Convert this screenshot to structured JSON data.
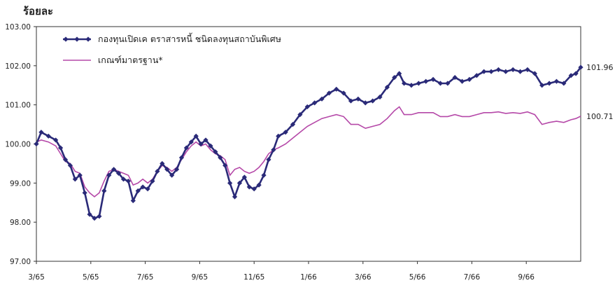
{
  "chart_data": {
    "type": "line",
    "unit_label": "ร้อยละ",
    "x_tick_labels": [
      "3/65",
      "5/65",
      "7/65",
      "9/65",
      "11/65",
      "1/66",
      "3/66",
      "5/66",
      "7/66",
      "9/66"
    ],
    "ylim": [
      97.0,
      103.0
    ],
    "y_ticks": [
      "97.00",
      "98.00",
      "99.00",
      "100.00",
      "101.00",
      "102.00",
      "103.00"
    ],
    "grid": false,
    "legend_position": "top-left",
    "series": [
      {
        "name": "กองทุนเปิดเค ตราสารหนี้ ชนิดลงทุนสถาบันพิเศษ",
        "color": "#2a2a78",
        "marker": "diamond",
        "end_label": "101.96",
        "points": [
          [
            0,
            100.0
          ],
          [
            2,
            100.3
          ],
          [
            5,
            100.2
          ],
          [
            8,
            100.1
          ],
          [
            10,
            99.9
          ],
          [
            12,
            99.6
          ],
          [
            14,
            99.45
          ],
          [
            16,
            99.1
          ],
          [
            18,
            99.2
          ],
          [
            20,
            98.75
          ],
          [
            22,
            98.2
          ],
          [
            24,
            98.1
          ],
          [
            26,
            98.15
          ],
          [
            28,
            98.8
          ],
          [
            30,
            99.2
          ],
          [
            32,
            99.35
          ],
          [
            34,
            99.25
          ],
          [
            36,
            99.1
          ],
          [
            38,
            99.05
          ],
          [
            40,
            98.55
          ],
          [
            42,
            98.8
          ],
          [
            44,
            98.9
          ],
          [
            46,
            98.85
          ],
          [
            48,
            99.05
          ],
          [
            50,
            99.3
          ],
          [
            52,
            99.5
          ],
          [
            54,
            99.35
          ],
          [
            56,
            99.2
          ],
          [
            58,
            99.35
          ],
          [
            60,
            99.65
          ],
          [
            62,
            99.9
          ],
          [
            64,
            100.05
          ],
          [
            66,
            100.2
          ],
          [
            68,
            100.0
          ],
          [
            70,
            100.1
          ],
          [
            72,
            99.95
          ],
          [
            74,
            99.8
          ],
          [
            76,
            99.65
          ],
          [
            78,
            99.45
          ],
          [
            80,
            99.0
          ],
          [
            82,
            98.65
          ],
          [
            84,
            99.0
          ],
          [
            86,
            99.15
          ],
          [
            88,
            98.9
          ],
          [
            90,
            98.85
          ],
          [
            92,
            98.95
          ],
          [
            94,
            99.2
          ],
          [
            96,
            99.6
          ],
          [
            98,
            99.85
          ],
          [
            100,
            100.2
          ],
          [
            103,
            100.3
          ],
          [
            106,
            100.5
          ],
          [
            109,
            100.75
          ],
          [
            112,
            100.95
          ],
          [
            115,
            101.05
          ],
          [
            118,
            101.15
          ],
          [
            121,
            101.3
          ],
          [
            124,
            101.4
          ],
          [
            127,
            101.3
          ],
          [
            130,
            101.1
          ],
          [
            133,
            101.15
          ],
          [
            136,
            101.05
          ],
          [
            139,
            101.1
          ],
          [
            142,
            101.2
          ],
          [
            145,
            101.45
          ],
          [
            148,
            101.7
          ],
          [
            150,
            101.8
          ],
          [
            152,
            101.55
          ],
          [
            155,
            101.5
          ],
          [
            158,
            101.55
          ],
          [
            161,
            101.6
          ],
          [
            164,
            101.65
          ],
          [
            167,
            101.55
          ],
          [
            170,
            101.55
          ],
          [
            173,
            101.7
          ],
          [
            176,
            101.6
          ],
          [
            179,
            101.65
          ],
          [
            182,
            101.75
          ],
          [
            185,
            101.85
          ],
          [
            188,
            101.85
          ],
          [
            191,
            101.9
          ],
          [
            194,
            101.85
          ],
          [
            197,
            101.9
          ],
          [
            200,
            101.85
          ],
          [
            203,
            101.9
          ],
          [
            206,
            101.8
          ],
          [
            209,
            101.5
          ],
          [
            212,
            101.55
          ],
          [
            215,
            101.6
          ],
          [
            218,
            101.55
          ],
          [
            221,
            101.75
          ],
          [
            223,
            101.8
          ],
          [
            225,
            101.96
          ]
        ]
      },
      {
        "name": "เกณฑ์มาตรฐาน*",
        "color": "#b548a8",
        "marker": "none",
        "end_label": "100.71",
        "points": [
          [
            0,
            100.05
          ],
          [
            2,
            100.1
          ],
          [
            5,
            100.05
          ],
          [
            8,
            99.95
          ],
          [
            10,
            99.75
          ],
          [
            12,
            99.55
          ],
          [
            14,
            99.5
          ],
          [
            16,
            99.3
          ],
          [
            18,
            99.25
          ],
          [
            20,
            98.9
          ],
          [
            22,
            98.75
          ],
          [
            24,
            98.65
          ],
          [
            26,
            98.75
          ],
          [
            28,
            99.05
          ],
          [
            30,
            99.3
          ],
          [
            32,
            99.35
          ],
          [
            34,
            99.3
          ],
          [
            36,
            99.25
          ],
          [
            38,
            99.2
          ],
          [
            40,
            98.95
          ],
          [
            42,
            99.0
          ],
          [
            44,
            99.1
          ],
          [
            46,
            99.0
          ],
          [
            48,
            99.1
          ],
          [
            50,
            99.3
          ],
          [
            52,
            99.45
          ],
          [
            54,
            99.4
          ],
          [
            56,
            99.3
          ],
          [
            58,
            99.4
          ],
          [
            60,
            99.6
          ],
          [
            62,
            99.8
          ],
          [
            64,
            99.95
          ],
          [
            66,
            100.05
          ],
          [
            68,
            99.95
          ],
          [
            70,
            100.0
          ],
          [
            72,
            99.85
          ],
          [
            74,
            99.75
          ],
          [
            76,
            99.7
          ],
          [
            78,
            99.6
          ],
          [
            80,
            99.2
          ],
          [
            82,
            99.35
          ],
          [
            84,
            99.4
          ],
          [
            86,
            99.3
          ],
          [
            88,
            99.25
          ],
          [
            90,
            99.3
          ],
          [
            92,
            99.4
          ],
          [
            94,
            99.55
          ],
          [
            96,
            99.75
          ],
          [
            98,
            99.85
          ],
          [
            100,
            99.9
          ],
          [
            103,
            100.0
          ],
          [
            106,
            100.15
          ],
          [
            109,
            100.3
          ],
          [
            112,
            100.45
          ],
          [
            115,
            100.55
          ],
          [
            118,
            100.65
          ],
          [
            121,
            100.7
          ],
          [
            124,
            100.75
          ],
          [
            127,
            100.7
          ],
          [
            130,
            100.5
          ],
          [
            133,
            100.5
          ],
          [
            136,
            100.4
          ],
          [
            139,
            100.45
          ],
          [
            142,
            100.5
          ],
          [
            145,
            100.65
          ],
          [
            148,
            100.85
          ],
          [
            150,
            100.95
          ],
          [
            152,
            100.75
          ],
          [
            155,
            100.75
          ],
          [
            158,
            100.8
          ],
          [
            161,
            100.8
          ],
          [
            164,
            100.8
          ],
          [
            167,
            100.7
          ],
          [
            170,
            100.7
          ],
          [
            173,
            100.75
          ],
          [
            176,
            100.7
          ],
          [
            179,
            100.7
          ],
          [
            182,
            100.75
          ],
          [
            185,
            100.8
          ],
          [
            188,
            100.8
          ],
          [
            191,
            100.82
          ],
          [
            194,
            100.78
          ],
          [
            197,
            100.8
          ],
          [
            200,
            100.78
          ],
          [
            203,
            100.82
          ],
          [
            206,
            100.75
          ],
          [
            209,
            100.5
          ],
          [
            212,
            100.55
          ],
          [
            215,
            100.58
          ],
          [
            218,
            100.55
          ],
          [
            221,
            100.62
          ],
          [
            223,
            100.65
          ],
          [
            225,
            100.71
          ]
        ]
      }
    ]
  }
}
